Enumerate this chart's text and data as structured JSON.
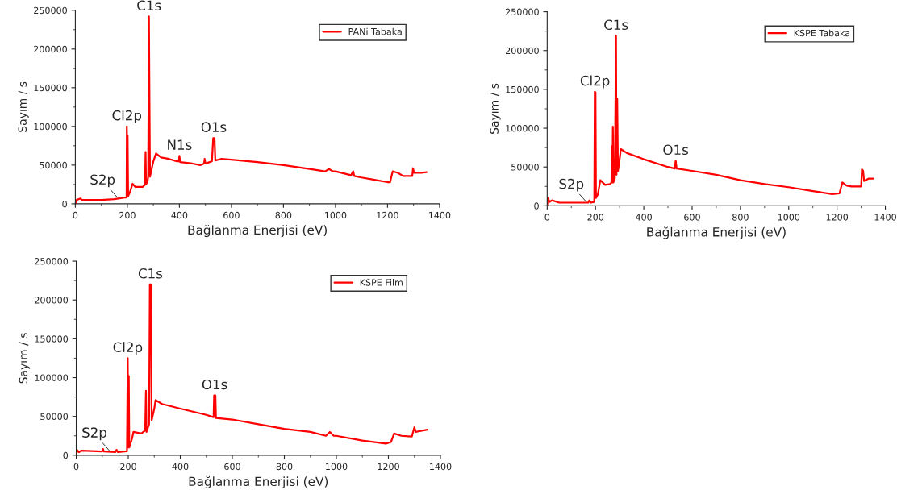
{
  "chart_data": [
    {
      "type": "line",
      "xlabel": "Bağlanma Enerjisi (eV)",
      "ylabel": "Sayım / s",
      "xlim": [
        0,
        1400
      ],
      "xticks": [
        0,
        200,
        400,
        600,
        800,
        1000,
        1200,
        1400
      ],
      "ylim": [
        0,
        250000
      ],
      "yticks": [
        0,
        50000,
        100000,
        150000,
        200000,
        250000
      ],
      "legend": "top right",
      "grid": false,
      "series": [
        {
          "name": "PANi Tabaka",
          "color": "#ff0000",
          "x": [
            0,
            5,
            20,
            25,
            100,
            150,
            190,
            197,
            198,
            200,
            201,
            203,
            210,
            220,
            230,
            260,
            268,
            270,
            272,
            278,
            280,
            283,
            287,
            290,
            300,
            310,
            330,
            360,
            390,
            398,
            400,
            403,
            450,
            480,
            495,
            497,
            500,
            525,
            530,
            535,
            538,
            560,
            600,
            700,
            800,
            900,
            960,
            975,
            990,
            1000,
            1060,
            1068,
            1072,
            1100,
            1150,
            1200,
            1210,
            1220,
            1240,
            1260,
            1295,
            1298,
            1302,
            1310,
            1330,
            1350
          ],
          "values": [
            0,
            5000,
            7000,
            5000,
            5000,
            6000,
            8000,
            8000,
            100000,
            10000,
            88000,
            10000,
            15000,
            26000,
            22000,
            22000,
            25000,
            67000,
            25000,
            30000,
            35000,
            242000,
            35000,
            40000,
            55000,
            65000,
            60000,
            58000,
            55000,
            55000,
            62000,
            54000,
            52000,
            50000,
            52000,
            58000,
            52000,
            55000,
            85000,
            85000,
            56000,
            58000,
            57000,
            54000,
            50000,
            45000,
            42000,
            45000,
            42000,
            42000,
            37000,
            42000,
            36000,
            34000,
            31000,
            28000,
            28000,
            42000,
            40000,
            36000,
            36000,
            46000,
            40000,
            40000,
            40000,
            41000
          ]
        }
      ],
      "annotations": [
        {
          "text": "C1s",
          "x": 283,
          "y": 242000
        },
        {
          "text": "Cl2p",
          "x": 198,
          "y": 100000
        },
        {
          "text": "N1s",
          "x": 400,
          "y": 62000
        },
        {
          "text": "O1s",
          "x": 532,
          "y": 85000
        },
        {
          "text": "S2p",
          "x": 165,
          "y": 7000
        }
      ]
    },
    {
      "type": "line",
      "xlabel": "Bağlanma Enerjisi (eV)",
      "ylabel": "Sayım / s",
      "xlim": [
        0,
        1400
      ],
      "xticks": [
        0,
        200,
        400,
        600,
        800,
        1000,
        1200,
        1400
      ],
      "ylim": [
        0,
        250000
      ],
      "yticks": [
        0,
        50000,
        100000,
        150000,
        200000,
        250000
      ],
      "legend": "top right",
      "grid": false,
      "series": [
        {
          "name": "KSPE Tabaka",
          "color": "#ff0000",
          "x": [
            0,
            3,
            10,
            20,
            50,
            100,
            150,
            170,
            175,
            180,
            195,
            197,
            200,
            202,
            210,
            220,
            240,
            260,
            266,
            268,
            270,
            272,
            274,
            280,
            285,
            287,
            290,
            293,
            300,
            305,
            330,
            400,
            500,
            528,
            532,
            536,
            600,
            700,
            800,
            900,
            1000,
            1100,
            1180,
            1210,
            1222,
            1240,
            1260,
            1300,
            1303,
            1308,
            1312,
            1330,
            1350
          ],
          "values": [
            0,
            10000,
            5000,
            7000,
            4000,
            4000,
            4000,
            4000,
            7000,
            4000,
            5000,
            147000,
            146000,
            10000,
            15000,
            33000,
            27000,
            28000,
            30000,
            77000,
            30000,
            102000,
            30000,
            35000,
            219000,
            40000,
            138000,
            45000,
            60000,
            73000,
            68000,
            60000,
            50000,
            48000,
            58000,
            48000,
            45000,
            40000,
            33000,
            28000,
            24000,
            19000,
            15000,
            16000,
            30000,
            26000,
            25000,
            25000,
            47000,
            45000,
            32000,
            35000,
            35000
          ]
        }
      ],
      "annotations": [
        {
          "text": "C1s",
          "x": 285,
          "y": 219000
        },
        {
          "text": "Cl2p",
          "x": 198,
          "y": 147000
        },
        {
          "text": "O1s",
          "x": 532,
          "y": 58000
        },
        {
          "text": "S2p",
          "x": 165,
          "y": 4000
        }
      ]
    },
    {
      "type": "line",
      "xlabel": "Bağlanma Enerjisi (eV)",
      "ylabel": "Sayım / s",
      "xlim": [
        0,
        1400
      ],
      "xticks": [
        0,
        200,
        400,
        600,
        800,
        1000,
        1200,
        1400
      ],
      "ylim": [
        0,
        250000
      ],
      "yticks": [
        0,
        50000,
        100000,
        150000,
        200000,
        250000
      ],
      "legend": "top right",
      "grid": false,
      "series": [
        {
          "name": "KSPE Film",
          "color": "#ff0000",
          "x": [
            0,
            3,
            10,
            20,
            100,
            103,
            106,
            150,
            155,
            160,
            195,
            198,
            200,
            202,
            204,
            215,
            220,
            250,
            265,
            268,
            270,
            280,
            283,
            287,
            290,
            300,
            305,
            330,
            400,
            500,
            528,
            530,
            535,
            537,
            600,
            700,
            800,
            900,
            960,
            975,
            990,
            1000,
            1100,
            1190,
            1210,
            1222,
            1250,
            1290,
            1300,
            1305,
            1320,
            1350
          ],
          "values": [
            0,
            7000,
            4000,
            6000,
            5000,
            8000,
            5000,
            4000,
            7000,
            4000,
            5000,
            125000,
            10000,
            102000,
            10000,
            22000,
            30000,
            28000,
            32000,
            83000,
            30000,
            40000,
            220000,
            220000,
            45000,
            60000,
            71000,
            66000,
            60000,
            52000,
            49000,
            77000,
            77000,
            48000,
            46000,
            40000,
            34000,
            30000,
            25000,
            30000,
            25000,
            25000,
            19000,
            15000,
            17000,
            28000,
            25000,
            24000,
            36000,
            30000,
            31000,
            33000
          ]
        }
      ],
      "annotations": [
        {
          "text": "C1s",
          "x": 285,
          "y": 220000
        },
        {
          "text": "Cl2p",
          "x": 198,
          "y": 125000
        },
        {
          "text": "O1s",
          "x": 532,
          "y": 77000
        },
        {
          "text": "S2p",
          "x": 130,
          "y": 5000
        }
      ]
    }
  ]
}
